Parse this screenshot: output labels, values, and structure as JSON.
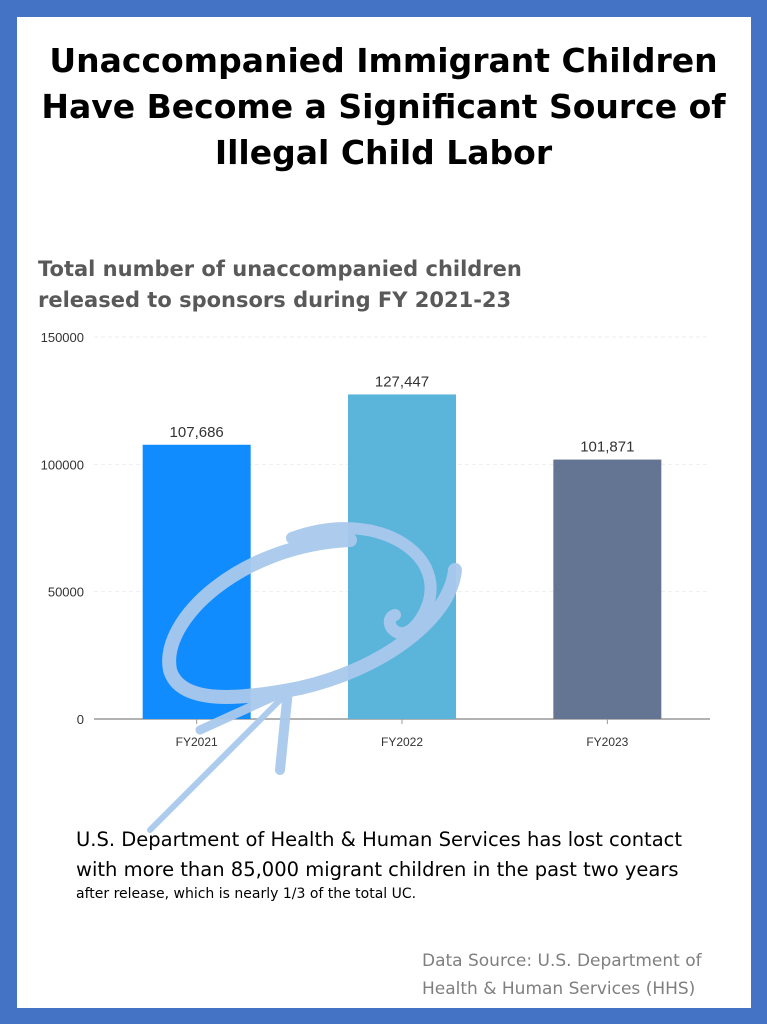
{
  "title": "Unaccompanied Immigrant Children Have Become a Significant Source of Illegal Child Labor",
  "chart_data": {
    "type": "bar",
    "title": "Total number of unaccompanied children released to sponsors during FY 2021-23",
    "categories": [
      "FY2021",
      "FY2022",
      "FY2023"
    ],
    "values": [
      107686,
      127447,
      101871
    ],
    "data_labels": [
      "107,686",
      "127,447",
      "101,871"
    ],
    "colors": [
      "#108CFF",
      "#5BB5DB",
      "#647593"
    ],
    "ylim": [
      0,
      150000
    ],
    "yticks": [
      0,
      50000,
      100000,
      150000
    ],
    "ytick_labels": [
      "0",
      "50000",
      "100000",
      "150000"
    ],
    "xlabel": "",
    "ylabel": "",
    "grid": true,
    "legend": "none"
  },
  "notes": {
    "line1": "U.S. Department of Health & Human Services has lost contact",
    "line2": "with more than 85,000 migrant children in the past two years",
    "line3": "after release, which is nearly 1/3 of the total UC."
  },
  "source": {
    "line1": "Data Source: U.S. Department of",
    "line2": "Health & Human Services (HHS)"
  },
  "colors": {
    "border": "#4472C4",
    "annotation": "#A9C9EC"
  }
}
